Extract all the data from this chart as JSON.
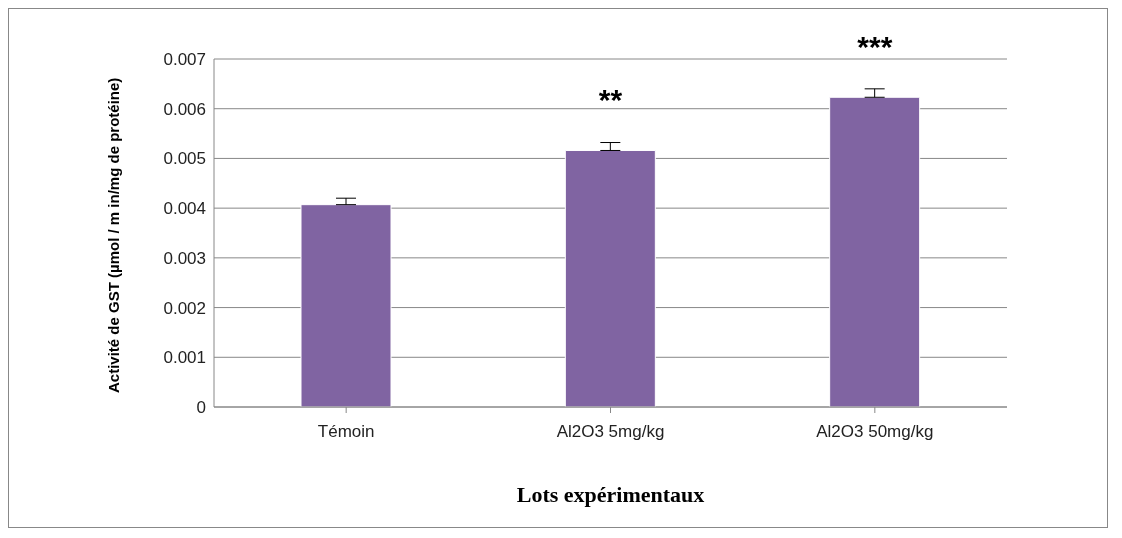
{
  "chart_data": {
    "type": "bar",
    "xlabel": "Lots expérimentaux",
    "ylabel": "Activité de GST (µmol / m in/mg de protéine)",
    "categories": [
      "Témoin",
      "Al2O3 5mg/kg",
      "Al2O3 50mg/kg"
    ],
    "values": [
      0.00407,
      0.00516,
      0.00623
    ],
    "errors": [
      [
        0.00407,
        0.0042
      ],
      [
        0.00516,
        0.00532
      ],
      [
        0.00623,
        0.0064
      ]
    ],
    "color": "#8064a2",
    "ylim": [
      0,
      0.007
    ],
    "yticks": [
      0,
      0.001,
      0.002,
      0.003,
      0.004,
      0.005,
      0.006,
      0.007
    ],
    "grid": "y",
    "annotations": [
      "**",
      "***"
    ]
  }
}
